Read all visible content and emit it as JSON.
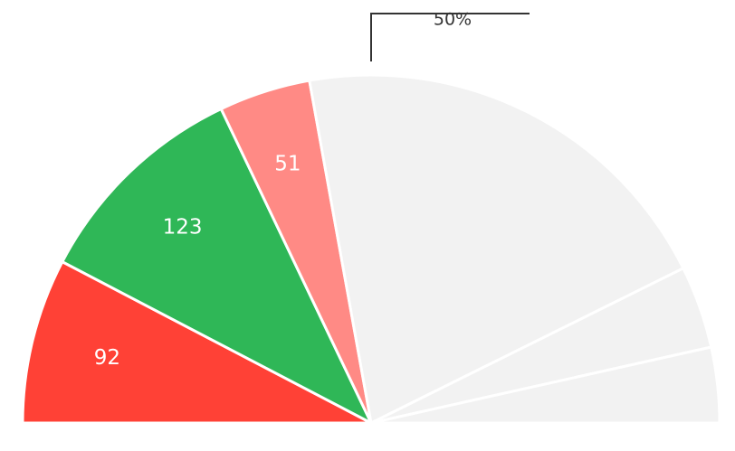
{
  "chart_data": {
    "type": "half-pie",
    "values": [
      92,
      123,
      51,
      246,
      46,
      42
    ],
    "colors": [
      "#ff4136",
      "#2fb757",
      "#ff8a85",
      "#f2f2f2",
      "#f2f2f2",
      "#f2f2f2"
    ],
    "labeled": [
      true,
      true,
      true,
      false,
      false,
      false
    ],
    "threshold": {
      "value": 50,
      "label": "50%"
    }
  }
}
